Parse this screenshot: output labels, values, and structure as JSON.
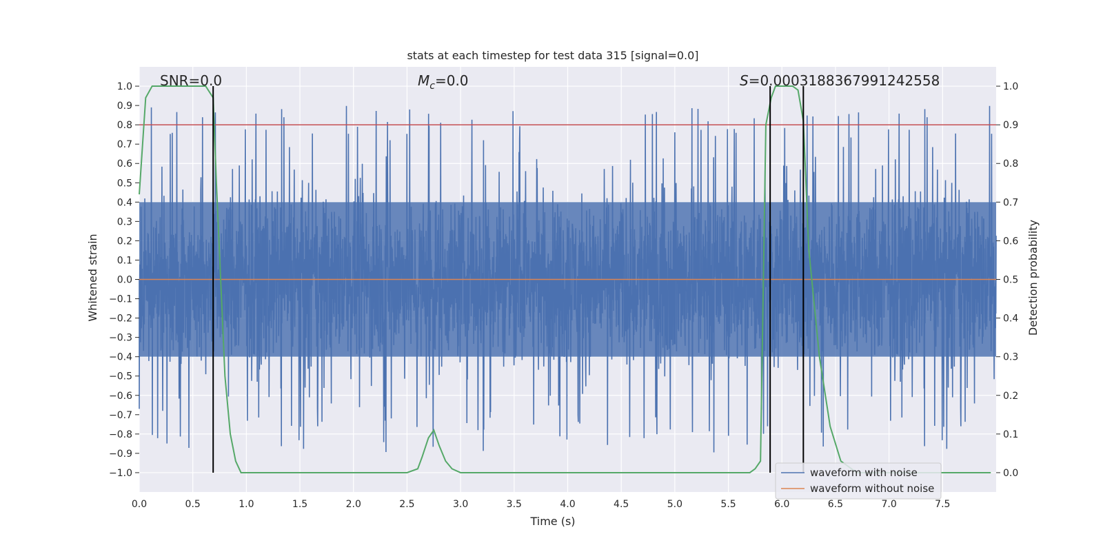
{
  "chart_data": {
    "type": "line",
    "title": "stats at each timestep for test data 315 [signal=0.0]",
    "xlabel": "Time (s)",
    "ylabel": "Whitened strain",
    "ylabel_right": "Detection probability",
    "xlim": [
      0.0,
      8.0
    ],
    "ylim": [
      -1.1,
      1.1
    ],
    "ylim_right": [
      -0.05,
      1.05
    ],
    "x_ticks": [
      "0.0",
      "0.5",
      "1.0",
      "1.5",
      "2.0",
      "2.5",
      "3.0",
      "3.5",
      "4.0",
      "4.5",
      "5.0",
      "5.5",
      "6.0",
      "6.5",
      "7.0",
      "7.5"
    ],
    "y_ticks": [
      "1.0",
      "0.9",
      "0.8",
      "0.7",
      "0.6",
      "0.5",
      "0.4",
      "0.3",
      "0.2",
      "0.1",
      "0.0",
      "−0.1",
      "−0.2",
      "−0.3",
      "−0.4",
      "−0.5",
      "−0.6",
      "−0.7",
      "−0.8",
      "−0.9",
      "−1.0"
    ],
    "y_ticks_right": [
      "1.0",
      "0.9",
      "0.8",
      "0.7",
      "0.6",
      "0.5",
      "0.4",
      "0.3",
      "0.2",
      "0.1",
      "0.0"
    ],
    "annotations": {
      "snr": "SNR=0.0",
      "mc_symbol": "M",
      "mc_sub": "c",
      "mc_value": "=0.0",
      "s_symbol": "S",
      "s_value": "=0.0003188367991242558"
    },
    "legend": {
      "placement": "bottom-right",
      "items": [
        {
          "label": "waveform with noise",
          "color": "#4c72b0"
        },
        {
          "label": "waveform without noise",
          "color": "#dd8452"
        }
      ]
    },
    "threshold": {
      "y_right": 0.9,
      "color": "#c44e52"
    },
    "detection_probability": {
      "color": "#55a868",
      "x": [
        0.0,
        0.06,
        0.12,
        0.3,
        0.5,
        0.62,
        0.69,
        0.72,
        0.76,
        0.8,
        0.85,
        0.9,
        0.95,
        1.0,
        1.5,
        2.0,
        2.5,
        2.6,
        2.64,
        2.7,
        2.75,
        2.8,
        2.86,
        2.92,
        3.0,
        4.0,
        5.0,
        5.7,
        5.75,
        5.8,
        5.85,
        5.9,
        5.94,
        6.0,
        6.1,
        6.15,
        6.2,
        6.25,
        6.35,
        6.45,
        6.55,
        6.7,
        7.0,
        7.5,
        7.95
      ],
      "y": [
        0.72,
        0.97,
        1.0,
        1.0,
        1.0,
        1.0,
        0.97,
        0.75,
        0.5,
        0.25,
        0.1,
        0.03,
        0.0,
        0.0,
        0.0,
        0.0,
        0.0,
        0.01,
        0.04,
        0.09,
        0.11,
        0.07,
        0.03,
        0.01,
        0.0,
        0.0,
        0.0,
        0.0,
        0.01,
        0.03,
        0.9,
        0.97,
        1.0,
        1.0,
        1.0,
        0.99,
        0.91,
        0.58,
        0.3,
        0.12,
        0.03,
        0.0,
        0.0,
        0.0,
        0.0
      ]
    },
    "markers": [
      {
        "x": 0.69,
        "y_right": [
          0.0,
          1.0
        ],
        "color": "#000000"
      },
      {
        "x": 5.89,
        "y_right": [
          0.0,
          1.0
        ],
        "color": "#000000"
      },
      {
        "x": 6.2,
        "y_right": [
          0.0,
          1.0
        ],
        "color": "#000000"
      }
    ],
    "series": [
      {
        "name": "waveform with noise",
        "color": "#4c72b0",
        "description_values": {
          "typical_range": [
            -0.55,
            0.55
          ],
          "max": 1.0,
          "min": -0.97,
          "sample_rate_hz": 2048
        }
      },
      {
        "name": "waveform without noise",
        "color": "#dd8452",
        "values_constant": 0.0
      }
    ],
    "grid": true,
    "background": "#eaeaf2"
  }
}
